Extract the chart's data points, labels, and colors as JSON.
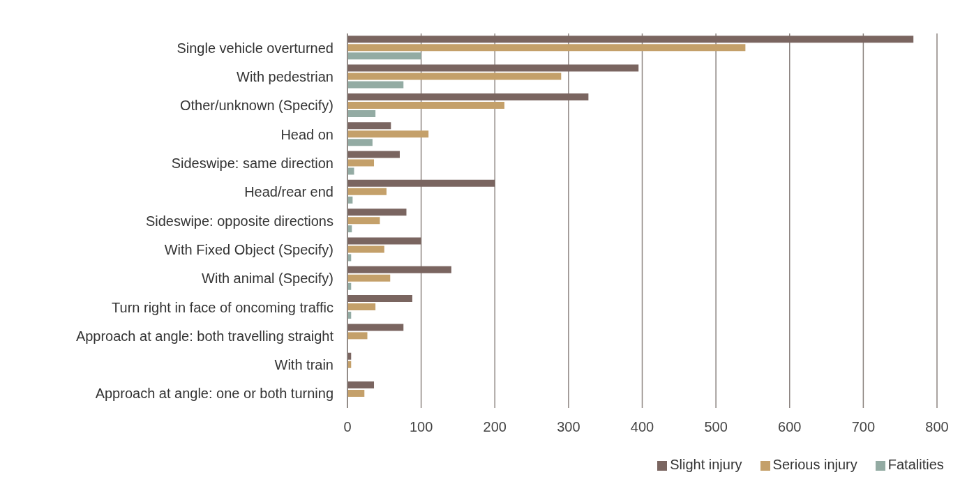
{
  "chart_data": {
    "type": "bar",
    "orientation": "horizontal",
    "categories": [
      "Single vehicle overturned",
      "With pedestrian",
      "Other/unknown (Specify)",
      "Head on",
      "Sideswipe: same direction",
      "Head/rear end",
      "Sideswipe: opposite directions",
      "With Fixed Object (Specify)",
      "With animal (Specify)",
      "Turn right in face of oncoming traffic",
      "Approach at angle: both travelling straight",
      "With train",
      "Approach at angle: one or both turning"
    ],
    "series": [
      {
        "name": "Slight injury",
        "color": "#7a6560",
        "values": [
          768,
          395,
          327,
          59,
          71,
          200,
          80,
          100,
          141,
          88,
          76,
          5,
          36
        ]
      },
      {
        "name": "Serious injury",
        "color": "#c4a06a",
        "values": [
          540,
          290,
          213,
          110,
          36,
          53,
          44,
          50,
          58,
          38,
          27,
          5,
          23
        ]
      },
      {
        "name": "Fatalities",
        "color": "#93aba3",
        "values": [
          100,
          76,
          38,
          34,
          9,
          7,
          6,
          5,
          5,
          5,
          null,
          null,
          0
        ]
      }
    ],
    "xlim": [
      0,
      800
    ],
    "xticks": [
      0,
      100,
      200,
      300,
      400,
      500,
      600,
      700,
      800
    ],
    "grid": "x",
    "legend": "bottom"
  }
}
